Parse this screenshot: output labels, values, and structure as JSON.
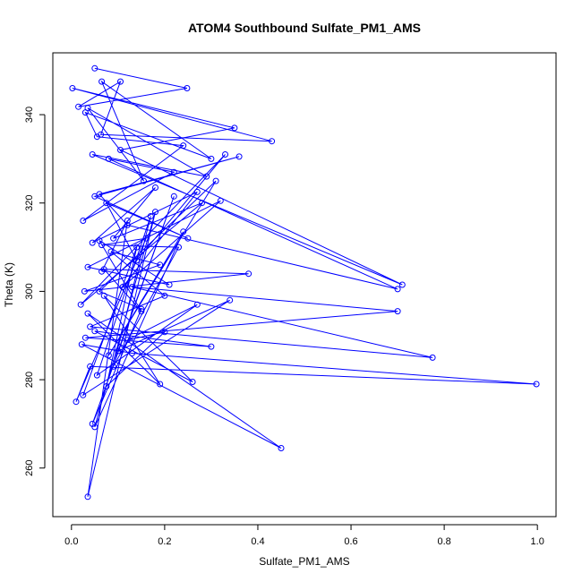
{
  "chart_data": {
    "type": "scatter",
    "title": "ATOM4 Southbound Sulfate_PM1_AMS",
    "xlabel": "Sulfate_PM1_AMS",
    "ylabel": "Theta (K)",
    "xlim": [
      -0.04,
      1.04
    ],
    "ylim": [
      249,
      354
    ],
    "xticks": [
      0.0,
      0.2,
      0.4,
      0.6,
      0.8,
      1.0
    ],
    "xtick_labels": [
      "0.0",
      "0.2",
      "0.4",
      "0.6",
      "0.8",
      "1.0"
    ],
    "yticks": [
      260,
      280,
      300,
      320,
      340
    ],
    "ytick_labels": [
      "260",
      "280",
      "300",
      "320",
      "340"
    ],
    "color": "#0000ff",
    "grid": false,
    "legend": false,
    "series": [
      {
        "x": [
          0.05,
          0.248,
          0.015,
          0.105,
          0.063,
          0.43,
          0.002,
          0.35,
          0.105,
          0.71,
          0.045,
          0.29,
          0.035,
          0.155,
          0.065,
          0.3,
          0.03,
          0.055,
          0.24,
          0.025,
          0.22,
          0.08,
          0.7,
          0.12,
          0.06,
          0.36,
          0.05,
          0.25,
          0.075,
          0.14,
          0.33,
          0.02,
          0.28,
          0.09,
          0.18,
          0.045,
          0.27,
          0.11,
          0.32,
          0.035,
          0.21,
          0.06,
          0.15,
          0.07,
          0.38,
          0.028,
          0.19,
          0.085,
          0.2,
          0.04,
          0.775,
          0.13,
          0.7,
          0.03,
          0.3,
          0.05,
          0.26,
          0.07,
          0.19,
          0.035,
          0.45,
          0.022,
          0.13,
          0.998,
          0.04,
          0.01,
          0.16,
          0.065,
          0.23,
          0.09,
          0.17,
          0.055,
          0.27,
          0.12,
          0.2,
          0.075,
          0.14,
          0.025,
          0.34,
          0.1,
          0.22,
          0.045,
          0.15,
          0.06,
          0.31,
          0.08,
          0.24,
          0.05,
          0.18,
          0.035,
          0.12,
          0.065
        ],
        "y": [
          350.5,
          346.0,
          341.8,
          347.5,
          335.5,
          334.0,
          346.0,
          337.0,
          332.0,
          301.5,
          331.0,
          326.0,
          341.5,
          325.0,
          347.5,
          330.0,
          340.5,
          335.0,
          333.0,
          316.0,
          327.0,
          330.0,
          300.5,
          315.0,
          322.0,
          330.5,
          321.5,
          312.0,
          320.0,
          307.0,
          331.0,
          297.0,
          320.0,
          312.0,
          323.5,
          311.0,
          322.5,
          301.0,
          320.5,
          305.5,
          301.5,
          311.5,
          295.5,
          305.0,
          304.0,
          300.0,
          306.0,
          309.0,
          299.0,
          292.0,
          285.0,
          301.0,
          295.5,
          289.5,
          287.5,
          291.0,
          279.5,
          299.0,
          279.0,
          295.0,
          264.5,
          288.0,
          286.0,
          279.0,
          283.0,
          275.0,
          312.0,
          310.5,
          310.0,
          283.0,
          317.0,
          281.0,
          297.0,
          289.0,
          290.8,
          278.5,
          310.0,
          276.5,
          298.0,
          286.5,
          321.5,
          270.0,
          296.0,
          300.0,
          325.0,
          285.5,
          313.5,
          269.3,
          318.0,
          253.5,
          316.0,
          304.5
        ]
      }
    ]
  }
}
